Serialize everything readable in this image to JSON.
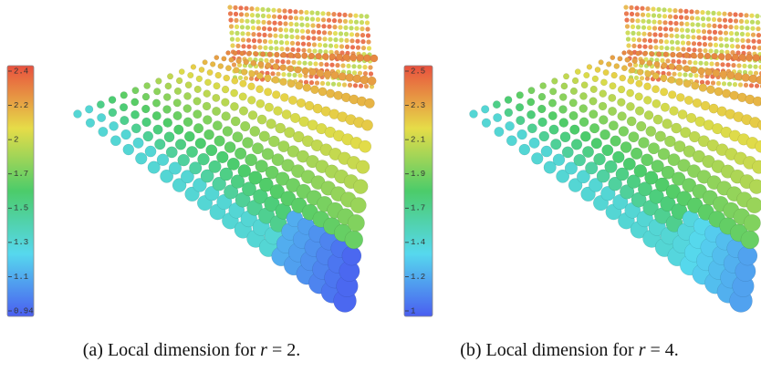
{
  "panels": [
    {
      "colorbar_ticks": [
        "2.4",
        "2.2",
        "2",
        "1.7",
        "1.5",
        "1.3",
        "1.1",
        "0.94"
      ],
      "caption": {
        "prefix": "(a) Local dimension for",
        "variable": "r",
        "suffix": "= 2."
      }
    },
    {
      "colorbar_ticks": [
        "2.5",
        "2.3",
        "2.1",
        "1.9",
        "1.7",
        "1.4",
        "1.2",
        "1"
      ],
      "caption": {
        "prefix": "(b) Local dimension for",
        "variable": "r",
        "suffix": "= 4."
      }
    }
  ]
}
